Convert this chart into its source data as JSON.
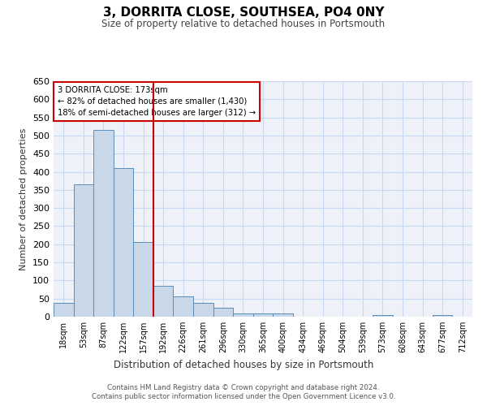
{
  "title": "3, DORRITA CLOSE, SOUTHSEA, PO4 0NY",
  "subtitle": "Size of property relative to detached houses in Portsmouth",
  "xlabel": "Distribution of detached houses by size in Portsmouth",
  "ylabel": "Number of detached properties",
  "categories": [
    "18sqm",
    "53sqm",
    "87sqm",
    "122sqm",
    "157sqm",
    "192sqm",
    "226sqm",
    "261sqm",
    "296sqm",
    "330sqm",
    "365sqm",
    "400sqm",
    "434sqm",
    "469sqm",
    "504sqm",
    "539sqm",
    "573sqm",
    "608sqm",
    "643sqm",
    "677sqm",
    "712sqm"
  ],
  "values": [
    38,
    365,
    515,
    410,
    207,
    85,
    55,
    37,
    24,
    9,
    10,
    9,
    0,
    0,
    0,
    0,
    4,
    0,
    0,
    4,
    0
  ],
  "bar_color": "#c8d8e8",
  "bar_edge_color": "#5b8db8",
  "vline_x_index": 4.5,
  "vline_color": "#cc0000",
  "annotation_line1": "3 DORRITA CLOSE: 173sqm",
  "annotation_line2": "← 82% of detached houses are smaller (1,430)",
  "annotation_line3": "18% of semi-detached houses are larger (312) →",
  "annotation_box_color": "#cc0000",
  "ylim": [
    0,
    650
  ],
  "yticks": [
    0,
    50,
    100,
    150,
    200,
    250,
    300,
    350,
    400,
    450,
    500,
    550,
    600,
    650
  ],
  "grid_color": "#c8d8f0",
  "background_color": "#eef2f8",
  "footnote1": "Contains HM Land Registry data © Crown copyright and database right 2024.",
  "footnote2": "Contains public sector information licensed under the Open Government Licence v3.0."
}
